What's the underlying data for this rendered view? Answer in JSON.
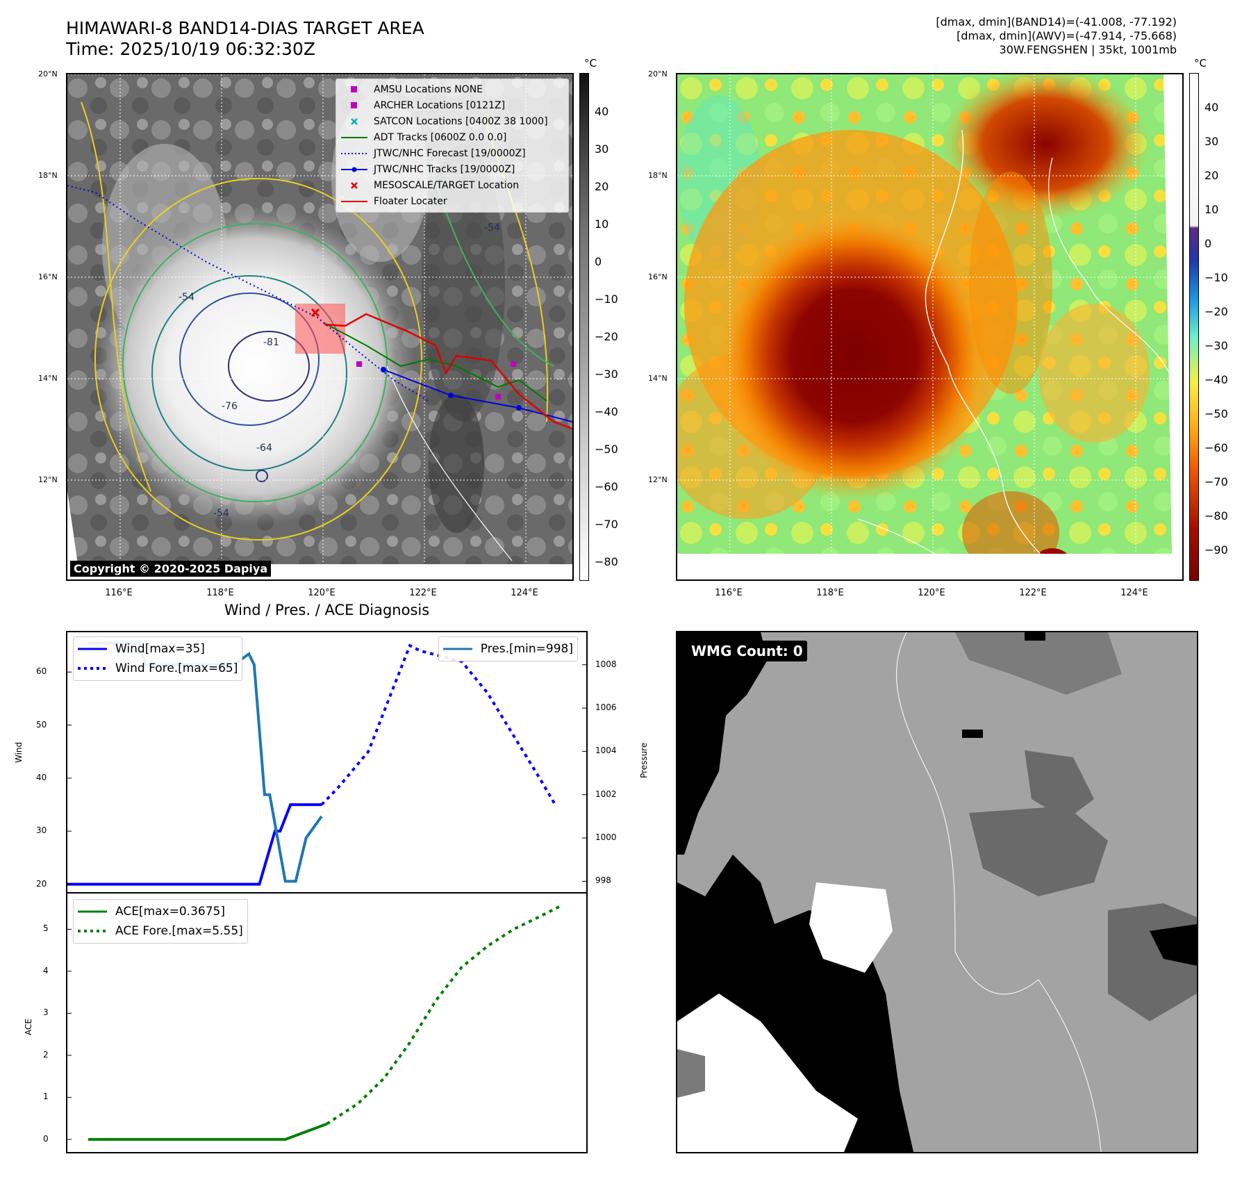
{
  "header": {
    "title_line1": "HIMAWARI-8 BAND14-DIAS TARGET AREA",
    "title_line2": "Time: 2025/10/19 06:32:30Z",
    "info_line1": "[dmax, dmin](BAND14)=(-41.008, -77.192)",
    "info_line2": "[dmax, dmin](AWV)=(-47.914, -75.668)",
    "info_line3": "30W.FENGSHEN | 35kt, 1001mb"
  },
  "map_axes": {
    "lat_labels": [
      "20°N",
      "18°N",
      "16°N",
      "14°N",
      "12°N"
    ],
    "lon_labels": [
      "116°E",
      "118°E",
      "120°E",
      "122°E",
      "124°E"
    ]
  },
  "map1": {
    "copyright": "Copyright © 2020-2025 Dapiya",
    "contour_labels": [
      "-81",
      "-76",
      "-64",
      "-54",
      "-54",
      "-54"
    ],
    "legend": [
      {
        "label": "AMSU Locations NONE",
        "symbol": "square",
        "color": "#c000c0"
      },
      {
        "label": "ARCHER Locations [0121Z]",
        "symbol": "square",
        "color": "#c000c0"
      },
      {
        "label": "SATCON Locations [0400Z 38 1000]",
        "symbol": "x",
        "color": "#00b0b0"
      },
      {
        "label": "ADT Tracks [0600Z 0.0 0.0]",
        "symbol": "line",
        "color": "#007a00"
      },
      {
        "label": "JTWC/NHC Forecast [19/0000Z]",
        "symbol": "dotted",
        "color": "#0000e0"
      },
      {
        "label": "JTWC/NHC Tracks [19/0000Z]",
        "symbol": "line-dot",
        "color": "#0000e0"
      },
      {
        "label": "MESOSCALE/TARGET Location",
        "symbol": "x",
        "color": "#e00000"
      },
      {
        "label": "Floater Locater",
        "symbol": "line",
        "color": "#e00000"
      }
    ]
  },
  "colorbar1": {
    "unit": "°C",
    "ticks": [
      "40",
      "30",
      "20",
      "10",
      "0",
      "−10",
      "−20",
      "−30",
      "−40",
      "−50",
      "−60",
      "−70",
      "−80"
    ]
  },
  "colorbar2": {
    "unit": "°C",
    "ticks": [
      "40",
      "30",
      "20",
      "10",
      "0",
      "−10",
      "−20",
      "−30",
      "−40",
      "−50",
      "−60",
      "−70",
      "−80",
      "−90"
    ]
  },
  "diagnosis_title": "Wind / Pres. / ACE Diagnosis",
  "chart_data": [
    {
      "type": "line",
      "title": "",
      "ylabel": "Wind",
      "y2label": "Pressure",
      "ylim": [
        18.5,
        67.5
      ],
      "y2lim": [
        997.5,
        1009.5
      ],
      "yticks": [
        "60",
        "50",
        "40",
        "30",
        "20"
      ],
      "y2ticks": [
        "1008",
        "1006",
        "1004",
        "1002",
        "1000",
        "998"
      ],
      "series": [
        {
          "name": "Wind[max=35]",
          "axis": "left",
          "style": "solid",
          "color": "#0000ff",
          "x": [
            0,
            36,
            37,
            40,
            41,
            43,
            44,
            49
          ],
          "y": [
            20,
            20,
            20,
            30,
            30,
            35,
            35,
            35
          ]
        },
        {
          "name": "Wind Fore.[max=65]",
          "axis": "left",
          "style": "dotted",
          "color": "#0000ff",
          "x": [
            49,
            52,
            58,
            66,
            68,
            76,
            81,
            86,
            91,
            94
          ],
          "y": [
            35,
            38,
            45,
            65,
            64,
            62,
            56,
            48,
            40,
            35
          ]
        },
        {
          "name": "Pres.[min=998]",
          "axis": "right",
          "style": "solid",
          "color": "#1f77b4",
          "x": [
            4,
            14,
            15,
            32,
            35,
            36,
            38,
            39,
            42,
            44,
            46,
            49
          ],
          "y": [
            1009,
            1009,
            1008,
            1008,
            1008.5,
            1008,
            1002,
            1002,
            998,
            998,
            1000,
            1001
          ]
        }
      ],
      "xlim": [
        0,
        100
      ]
    },
    {
      "type": "line",
      "title": "",
      "ylabel": "ACE",
      "ylim": [
        -0.3,
        5.85
      ],
      "yticks": [
        "5",
        "4",
        "3",
        "2",
        "1",
        "0"
      ],
      "series": [
        {
          "name": "ACE[max=0.3675]",
          "style": "solid",
          "color": "#008000",
          "x": [
            4,
            42,
            50
          ],
          "y": [
            0,
            0,
            0.3675
          ]
        },
        {
          "name": "ACE Fore.[max=5.55]",
          "style": "dotted",
          "color": "#008000",
          "x": [
            50,
            56,
            61,
            66,
            71,
            76,
            81,
            86,
            91,
            95
          ],
          "y": [
            0.3675,
            0.85,
            1.45,
            2.3,
            3.3,
            4.1,
            4.6,
            5.0,
            5.3,
            5.55
          ]
        }
      ],
      "xlim": [
        0,
        100
      ]
    }
  ],
  "wmg": {
    "label": "WMG Count: 0"
  }
}
